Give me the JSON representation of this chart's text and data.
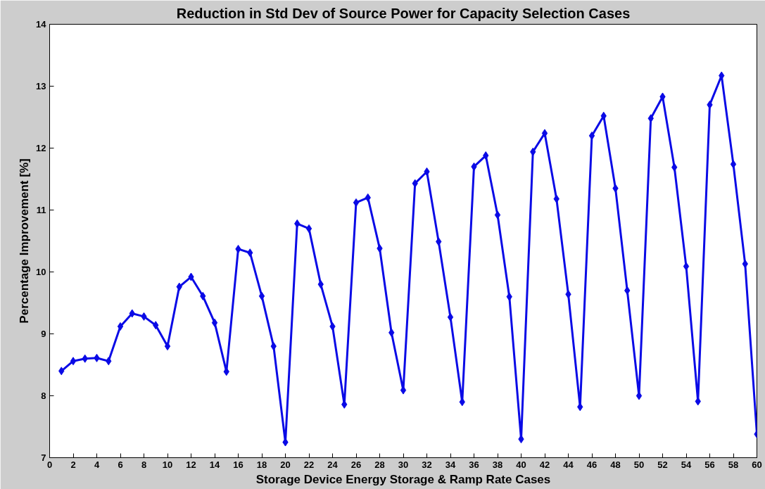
{
  "chart_data": {
    "type": "line",
    "title": "Reduction in Std Dev of Source Power for Capacity Selection Cases",
    "xlabel": "Storage Device Energy Storage & Ramp Rate Cases",
    "ylabel": "Percentage Improvement [%]",
    "x": [
      1,
      2,
      3,
      4,
      5,
      6,
      7,
      8,
      9,
      10,
      11,
      12,
      13,
      14,
      15,
      16,
      17,
      18,
      19,
      20,
      21,
      22,
      23,
      24,
      25,
      26,
      27,
      28,
      29,
      30,
      31,
      32,
      33,
      34,
      35,
      36,
      37,
      38,
      39,
      40,
      41,
      42,
      43,
      44,
      45,
      46,
      47,
      48,
      49,
      50,
      51,
      52,
      53,
      54,
      55,
      56,
      57,
      58,
      59,
      60
    ],
    "series": [
      {
        "color": "#0a0ae6",
        "values": [
          8.4,
          8.56,
          8.6,
          8.61,
          8.56,
          9.12,
          9.33,
          9.28,
          9.14,
          8.8,
          9.76,
          9.92,
          9.61,
          9.18,
          8.39,
          10.37,
          10.31,
          9.61,
          8.8,
          7.25,
          10.78,
          10.7,
          9.8,
          9.12,
          7.86,
          11.12,
          11.2,
          10.38,
          9.02,
          8.09,
          11.43,
          11.62,
          10.49,
          9.27,
          7.9,
          11.7,
          11.88,
          10.92,
          9.6,
          7.3,
          11.94,
          12.24,
          11.18,
          9.64,
          7.82,
          12.2,
          12.52,
          11.35,
          9.7,
          8.0,
          12.48,
          12.83,
          11.69,
          10.09,
          7.91,
          12.7,
          13.17,
          11.74,
          10.13,
          7.38
        ]
      }
    ],
    "xlim": [
      0,
      60
    ],
    "xticks": [
      0,
      2,
      4,
      6,
      8,
      10,
      12,
      14,
      16,
      18,
      20,
      22,
      24,
      26,
      28,
      30,
      32,
      34,
      36,
      38,
      40,
      42,
      44,
      46,
      48,
      50,
      52,
      54,
      56,
      58,
      60
    ],
    "ylim": [
      7,
      14
    ],
    "yticks": [
      7,
      8,
      9,
      10,
      11,
      12,
      13,
      14
    ],
    "marker": "diamond",
    "line_style": "solid",
    "grid": false
  }
}
